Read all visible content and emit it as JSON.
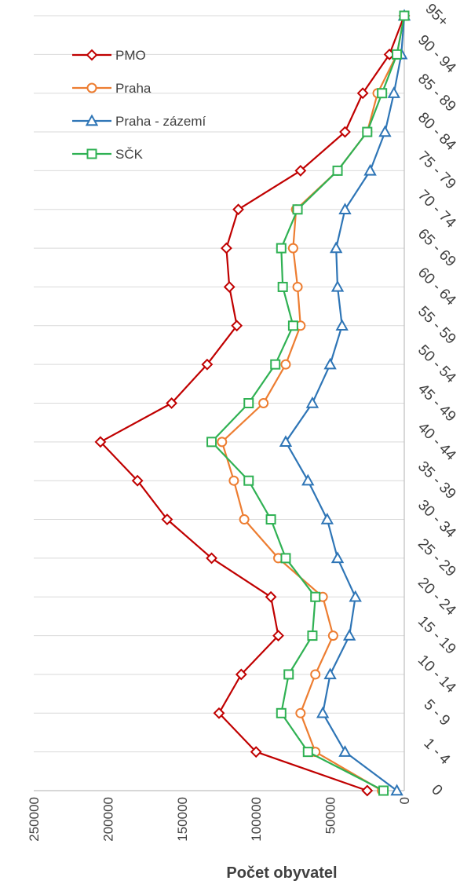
{
  "chart_data": {
    "type": "line",
    "orientation": "vertical-category",
    "categories": [
      "0",
      "1 - 4",
      "5 - 9",
      "10 - 14",
      "15 - 19",
      "20 - 24",
      "25 - 29",
      "30 - 34",
      "35 - 39",
      "40 - 44",
      "45 - 49",
      "50 - 54",
      "55 - 59",
      "60 - 64",
      "65 - 69",
      "70 - 74",
      "75 - 79",
      "80 - 84",
      "85 - 89",
      "90 - 94",
      "95+"
    ],
    "value_axis": {
      "title": "Počet obyvatel",
      "range": [
        0,
        250000
      ],
      "ticks": [
        "0",
        "50000",
        "100000",
        "150000",
        "200000",
        "250000"
      ],
      "reversed": true
    },
    "grid": true,
    "legend_position": "top-left",
    "series": [
      {
        "name": "PMO",
        "color": "#c00000",
        "marker": "diamond",
        "values": [
          25000,
          100000,
          125000,
          110000,
          85000,
          90000,
          130000,
          160000,
          180000,
          205000,
          157000,
          133000,
          113000,
          118000,
          120000,
          112000,
          70000,
          40000,
          28000,
          10000,
          0
        ]
      },
      {
        "name": "Praha",
        "color": "#ed7d31",
        "marker": "circle",
        "values": [
          15000,
          60000,
          70000,
          60000,
          48000,
          55000,
          85000,
          108000,
          115000,
          123000,
          95000,
          80000,
          70000,
          72000,
          75000,
          73000,
          45000,
          25000,
          18000,
          5000,
          0
        ]
      },
      {
        "name": "Praha - zázemí",
        "color": "#2e75b6",
        "marker": "triangle",
        "values": [
          5000,
          40000,
          55000,
          50000,
          37000,
          33000,
          45000,
          52000,
          65000,
          80000,
          62000,
          50000,
          42000,
          45000,
          46000,
          40000,
          23000,
          13000,
          7000,
          2000,
          0
        ]
      },
      {
        "name": "SČK",
        "color": "#2fb153",
        "marker": "square",
        "values": [
          14000,
          65000,
          83000,
          78000,
          62000,
          60000,
          80000,
          90000,
          105000,
          130000,
          105000,
          87000,
          75000,
          82000,
          83000,
          72000,
          45000,
          25000,
          15000,
          5000,
          0
        ]
      }
    ]
  }
}
